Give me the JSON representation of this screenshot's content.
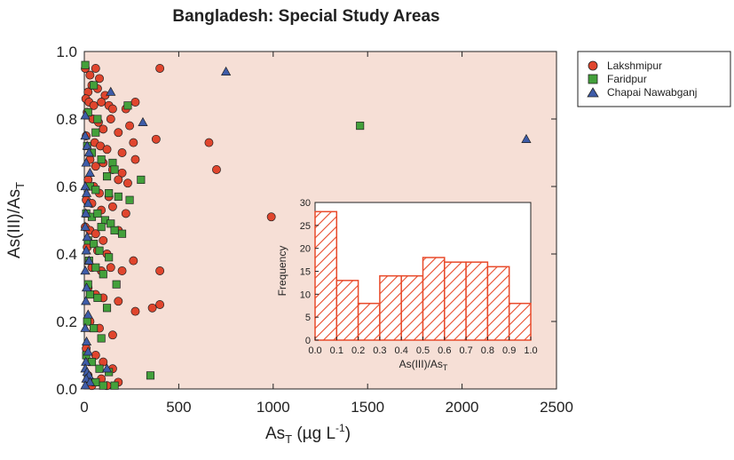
{
  "colors": {
    "plot_bg": "#f6dfd6",
    "lakshmipur": "#e0452d",
    "faridpur": "#43a03b",
    "chapai": "#3e5ca8",
    "hatch": "#e84a2a"
  },
  "chart_data": [
    {
      "type": "scatter",
      "title": "Bangladesh: Special Study Areas",
      "xlabel": "AsT (µg L-1)",
      "ylabel": "As(III)/AsT",
      "xlim": [
        0,
        2500
      ],
      "ylim": [
        0,
        1.0
      ],
      "x_ticks": [
        "0",
        "500",
        "1000",
        "1500",
        "2000",
        "2500"
      ],
      "y_ticks": [
        "0.0",
        "0.2",
        "0.4",
        "0.6",
        "0.8",
        "1.0"
      ],
      "legend_position": "top-right, outside plot",
      "series": [
        {
          "name": "Lakshmipur",
          "marker": "circle",
          "points": [
            [
              5,
              0.95
            ],
            [
              30,
              0.93
            ],
            [
              60,
              0.95
            ],
            [
              80,
              0.92
            ],
            [
              20,
              0.88
            ],
            [
              40,
              0.9
            ],
            [
              70,
              0.89
            ],
            [
              110,
              0.87
            ],
            [
              8,
              0.86
            ],
            [
              25,
              0.85
            ],
            [
              50,
              0.84
            ],
            [
              90,
              0.85
            ],
            [
              130,
              0.84
            ],
            [
              150,
              0.83
            ],
            [
              220,
              0.83
            ],
            [
              270,
              0.85
            ],
            [
              15,
              0.82
            ],
            [
              45,
              0.8
            ],
            [
              75,
              0.79
            ],
            [
              100,
              0.77
            ],
            [
              140,
              0.8
            ],
            [
              180,
              0.76
            ],
            [
              240,
              0.78
            ],
            [
              10,
              0.75
            ],
            [
              55,
              0.73
            ],
            [
              85,
              0.72
            ],
            [
              120,
              0.71
            ],
            [
              200,
              0.7
            ],
            [
              260,
              0.73
            ],
            [
              380,
              0.74
            ],
            [
              400,
              0.95
            ],
            [
              660,
              0.73
            ],
            [
              700,
              0.65
            ],
            [
              30,
              0.68
            ],
            [
              60,
              0.66
            ],
            [
              100,
              0.67
            ],
            [
              150,
              0.65
            ],
            [
              200,
              0.64
            ],
            [
              270,
              0.68
            ],
            [
              20,
              0.62
            ],
            [
              50,
              0.6
            ],
            [
              80,
              0.58
            ],
            [
              130,
              0.57
            ],
            [
              180,
              0.62
            ],
            [
              230,
              0.61
            ],
            [
              10,
              0.56
            ],
            [
              40,
              0.55
            ],
            [
              90,
              0.53
            ],
            [
              150,
              0.54
            ],
            [
              220,
              0.52
            ],
            [
              5,
              0.48
            ],
            [
              30,
              0.47
            ],
            [
              60,
              0.46
            ],
            [
              100,
              0.44
            ],
            [
              180,
              0.47
            ],
            [
              15,
              0.42
            ],
            [
              70,
              0.41
            ],
            [
              120,
              0.4
            ],
            [
              260,
              0.38
            ],
            [
              40,
              0.36
            ],
            [
              90,
              0.35
            ],
            [
              140,
              0.36
            ],
            [
              200,
              0.35
            ],
            [
              400,
              0.35
            ],
            [
              20,
              0.3
            ],
            [
              60,
              0.28
            ],
            [
              100,
              0.27
            ],
            [
              180,
              0.26
            ],
            [
              270,
              0.23
            ],
            [
              360,
              0.24
            ],
            [
              400,
              0.25
            ],
            [
              990,
              0.51
            ],
            [
              30,
              0.2
            ],
            [
              80,
              0.18
            ],
            [
              150,
              0.16
            ],
            [
              10,
              0.12
            ],
            [
              60,
              0.1
            ],
            [
              100,
              0.08
            ],
            [
              150,
              0.06
            ],
            [
              20,
              0.04
            ],
            [
              90,
              0.03
            ],
            [
              180,
              0.02
            ],
            [
              40,
              0.01
            ],
            [
              120,
              0.01
            ]
          ]
        },
        {
          "name": "Faridpur",
          "marker": "square",
          "points": [
            [
              5,
              0.96
            ],
            [
              50,
              0.9
            ],
            [
              70,
              0.8
            ],
            [
              20,
              0.82
            ],
            [
              60,
              0.76
            ],
            [
              230,
              0.84
            ],
            [
              1460,
              0.78
            ],
            [
              15,
              0.72
            ],
            [
              40,
              0.7
            ],
            [
              90,
              0.68
            ],
            [
              150,
              0.67
            ],
            [
              160,
              0.65
            ],
            [
              120,
              0.63
            ],
            [
              300,
              0.62
            ],
            [
              30,
              0.6
            ],
            [
              60,
              0.59
            ],
            [
              130,
              0.58
            ],
            [
              180,
              0.57
            ],
            [
              240,
              0.56
            ],
            [
              10,
              0.52
            ],
            [
              40,
              0.51
            ],
            [
              70,
              0.52
            ],
            [
              110,
              0.5
            ],
            [
              90,
              0.48
            ],
            [
              140,
              0.49
            ],
            [
              160,
              0.47
            ],
            [
              200,
              0.46
            ],
            [
              20,
              0.44
            ],
            [
              50,
              0.43
            ],
            [
              80,
              0.41
            ],
            [
              130,
              0.39
            ],
            [
              25,
              0.38
            ],
            [
              60,
              0.36
            ],
            [
              100,
              0.34
            ],
            [
              170,
              0.31
            ],
            [
              20,
              0.31
            ],
            [
              30,
              0.28
            ],
            [
              70,
              0.27
            ],
            [
              120,
              0.24
            ],
            [
              15,
              0.2
            ],
            [
              50,
              0.18
            ],
            [
              90,
              0.15
            ],
            [
              10,
              0.1
            ],
            [
              40,
              0.08
            ],
            [
              80,
              0.06
            ],
            [
              130,
              0.05
            ],
            [
              20,
              0.03
            ],
            [
              60,
              0.02
            ],
            [
              100,
              0.01
            ],
            [
              160,
              0.01
            ],
            [
              350,
              0.04
            ]
          ]
        },
        {
          "name": "Chapai Nawabganj",
          "marker": "triangle",
          "points": [
            [
              750,
              0.94
            ],
            [
              2340,
              0.74
            ],
            [
              140,
              0.88
            ],
            [
              310,
              0.79
            ],
            [
              5,
              0.81
            ],
            [
              5,
              0.75
            ],
            [
              15,
              0.72
            ],
            [
              25,
              0.7
            ],
            [
              10,
              0.67
            ],
            [
              30,
              0.64
            ],
            [
              5,
              0.6
            ],
            [
              12,
              0.58
            ],
            [
              20,
              0.55
            ],
            [
              8,
              0.52
            ],
            [
              5,
              0.48
            ],
            [
              15,
              0.45
            ],
            [
              10,
              0.41
            ],
            [
              25,
              0.38
            ],
            [
              5,
              0.35
            ],
            [
              12,
              0.3
            ],
            [
              8,
              0.26
            ],
            [
              20,
              0.22
            ],
            [
              5,
              0.18
            ],
            [
              12,
              0.14
            ],
            [
              20,
              0.11
            ],
            [
              8,
              0.08
            ],
            [
              5,
              0.06
            ],
            [
              15,
              0.05
            ],
            [
              25,
              0.04
            ],
            [
              10,
              0.03
            ],
            [
              30,
              0.02
            ],
            [
              5,
              0.01
            ],
            [
              120,
              0.06
            ]
          ]
        }
      ]
    },
    {
      "type": "bar",
      "subtype": "histogram",
      "xlabel": "As(III)/AsT",
      "ylabel": "Frequency",
      "bin_edges": [
        0.0,
        0.1,
        0.2,
        0.3,
        0.4,
        0.5,
        0.6,
        0.7,
        0.8,
        0.9,
        1.0
      ],
      "x_ticks": [
        "0.0",
        "0.1",
        "0.2",
        "0.3",
        "0.4",
        "0.5",
        "0.6",
        "0.7",
        "0.8",
        "0.9",
        "1.0"
      ],
      "y_ticks": [
        "0",
        "5",
        "10",
        "15",
        "20",
        "25",
        "30"
      ],
      "ylim": [
        0,
        30
      ],
      "values": [
        28,
        13,
        8,
        14,
        14,
        18,
        17,
        17,
        16,
        8
      ]
    }
  ]
}
